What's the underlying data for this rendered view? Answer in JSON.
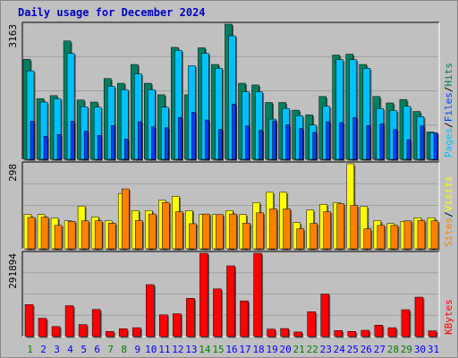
{
  "header": {
    "title": "Daily usage for December 2024"
  },
  "colors": {
    "hits": "#008060",
    "files": "#00c0ff",
    "pages": "#0040ff",
    "visits": "#ffff00",
    "sites": "#ff8000",
    "kbytes": "#ff0000",
    "panel_bg": "#c0c0c0",
    "title": "#0000c0",
    "weekend_day": "#008000",
    "weekday_day": "#0000ff"
  },
  "panels": {
    "top": {
      "max_label": "3163",
      "legend": [
        "Pages",
        "/",
        "Files",
        "/",
        "Hits"
      ]
    },
    "middle": {
      "max_label": "298",
      "legend": [
        "Sites",
        "/",
        "Visits"
      ]
    },
    "bottom": {
      "max_label": "291894",
      "legend": [
        "KBytes"
      ]
    }
  },
  "chart_data": {
    "type": "bar",
    "title": "Daily usage for December 2024",
    "categories": [
      "1",
      "2",
      "3",
      "4",
      "5",
      "6",
      "7",
      "8",
      "9",
      "10",
      "11",
      "12",
      "13",
      "14",
      "15",
      "16",
      "17",
      "18",
      "19",
      "20",
      "21",
      "22",
      "23",
      "24",
      "25",
      "26",
      "27",
      "28",
      "29",
      "30",
      "31"
    ],
    "weekend_days": [
      "1",
      "7",
      "8",
      "14",
      "15",
      "21",
      "22",
      "28",
      "29"
    ],
    "panels": [
      {
        "name": "hits-files-pages",
        "ymax_label": 3163,
        "ylim": [
          0,
          3163
        ],
        "series": [
          {
            "name": "Hits",
            "values": [
              2340,
              1420,
              1490,
              2770,
              1390,
              1340,
              1890,
              1780,
              2220,
              1780,
              1510,
              2620,
              1510,
              2610,
              2220,
              3163,
              1780,
              1740,
              1330,
              1330,
              1150,
              1040,
              1470,
              2440,
              2460,
              2220,
              1470,
              1320,
              1400,
              1120,
              640
            ]
          },
          {
            "name": "Files",
            "values": [
              2070,
              1340,
              1420,
              2480,
              1230,
              1220,
              1710,
              1630,
              2000,
              1630,
              1220,
              2550,
              2190,
              2480,
              2130,
              2890,
              1580,
              1580,
              940,
              1190,
              1020,
              800,
              1240,
              2330,
              2330,
              2130,
              1190,
              1140,
              1240,
              1000,
              620
            ]
          },
          {
            "name": "Pages",
            "values": [
              890,
              540,
              580,
              890,
              660,
              560,
              790,
              470,
              880,
              760,
              740,
              980,
              1100,
              920,
              700,
              1290,
              780,
              680,
              900,
              810,
              720,
              630,
              880,
              860,
              980,
              790,
              830,
              700,
              460,
              780,
              620
            ]
          }
        ]
      },
      {
        "name": "visits-sites",
        "ymax_label": 298,
        "ylim": [
          0,
          298
        ],
        "series": [
          {
            "name": "Visits",
            "values": [
              120,
              120,
              108,
              98,
              150,
              112,
              98,
              194,
              134,
              134,
              170,
              184,
              134,
              120,
              120,
              134,
              120,
              162,
              198,
              198,
              92,
              136,
              156,
              162,
              298,
              148,
              99,
              89,
              96,
              109,
              109
            ]
          },
          {
            "name": "Sites",
            "values": [
              110,
              111,
              82,
              96,
              98,
              98,
              90,
              210,
              99,
              122,
              162,
              130,
              88,
              122,
              120,
              122,
              90,
              126,
              140,
              140,
              70,
              89,
              130,
              158,
              152,
              70,
              82,
              82,
              98,
              99,
              98
            ]
          }
        ]
      },
      {
        "name": "kbytes",
        "ymax_label": 291894,
        "ylim": [
          0,
          291894
        ],
        "series": [
          {
            "name": "KBytes",
            "values": [
              112000,
              64000,
              35000,
              108000,
              42000,
              95000,
              18000,
              27000,
              31000,
              182000,
              76000,
              80000,
              134000,
              291894,
              167000,
              248000,
              125000,
              291894,
              26000,
              28000,
              16000,
              87000,
              149000,
              21000,
              18000,
              22000,
              40000,
              31000,
              94000,
              138000,
              20000
            ]
          }
        ]
      }
    ]
  }
}
